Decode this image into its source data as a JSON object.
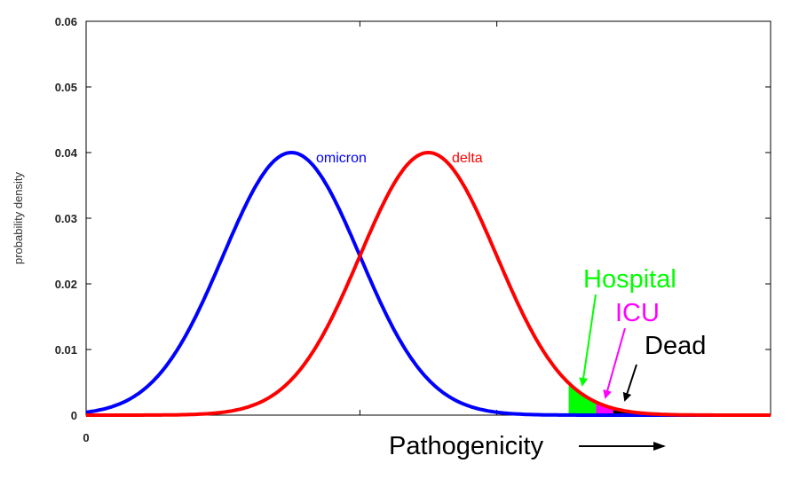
{
  "chart_data": {
    "type": "line",
    "title": "",
    "xlabel": "Pathogenicity",
    "ylabel": "probability density",
    "xlim": [
      0,
      100
    ],
    "ylim": [
      0,
      0.06
    ],
    "y_ticks": [
      "0",
      "0.01",
      "0.02",
      "0.03",
      "0.04",
      "0.05",
      "0.06"
    ],
    "x_ticks": [
      "0"
    ],
    "x_tick_marks": [
      0,
      40,
      60
    ],
    "grid": false,
    "series": [
      {
        "name": "omicron",
        "color": "#0000ff",
        "distribution": "normal",
        "mean": 30,
        "sd": 10,
        "peak": 0.04
      },
      {
        "name": "delta",
        "color": "#ff0000",
        "distribution": "normal",
        "mean": 50,
        "sd": 10,
        "peak": 0.04
      }
    ],
    "shaded_regions": [
      {
        "name": "Hospital",
        "color": "#00ff00",
        "x_from": 70.5,
        "x_to": 74.5,
        "under": "delta"
      },
      {
        "name": "ICU",
        "color": "#ff00ff",
        "x_from": 74.5,
        "x_to": 77,
        "under": "delta"
      },
      {
        "name": "Dead",
        "color": "#000000",
        "x_from": 77,
        "x_to": 80,
        "under": "delta"
      }
    ],
    "annotations": [
      {
        "text": "Hospital",
        "color": "#00ff00",
        "points_to": "Hospital"
      },
      {
        "text": "ICU",
        "color": "#ff00ff",
        "points_to": "ICU"
      },
      {
        "text": "Dead",
        "color": "#000000",
        "points_to": "Dead"
      }
    ]
  }
}
